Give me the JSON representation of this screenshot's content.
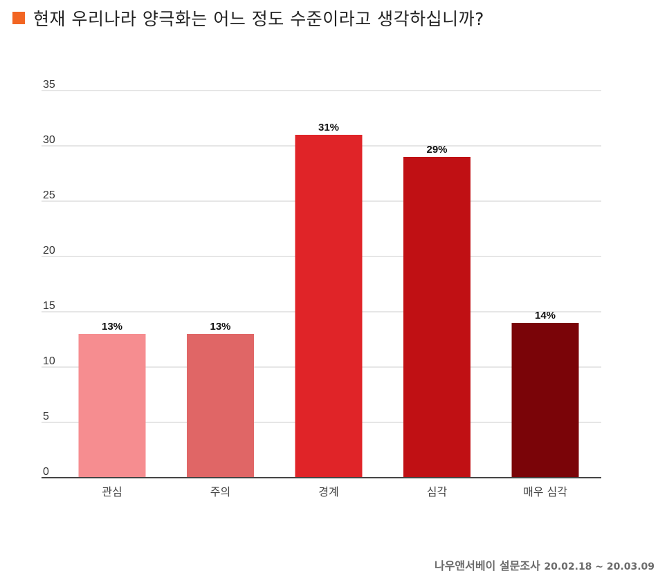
{
  "title": "현재 우리나라 양극화는 어느 정도 수준이라고 생각하십니까?",
  "title_marker_color": "#f26522",
  "source": {
    "org": "나우앤서베이 설문조사",
    "dates": "20.02.18 ~ 20.03.09"
  },
  "chart_data": {
    "type": "bar",
    "title": "현재 우리나라 양극화는 어느 정도 수준이라고 생각하십니까?",
    "xlabel": "",
    "ylabel": "",
    "ylim": [
      0,
      35
    ],
    "yticks": [
      0,
      5,
      10,
      15,
      20,
      25,
      30,
      35
    ],
    "grid": true,
    "legend": "none",
    "categories": [
      "관심",
      "주의",
      "경계",
      "심각",
      "매우 심각"
    ],
    "values": [
      13,
      13,
      31,
      29,
      14
    ],
    "data_labels": [
      "13%",
      "13%",
      "31%",
      "29%",
      "14%"
    ],
    "colors": [
      "#f68d90",
      "#e06666",
      "#e02428",
      "#c01014",
      "#7a0408"
    ]
  }
}
